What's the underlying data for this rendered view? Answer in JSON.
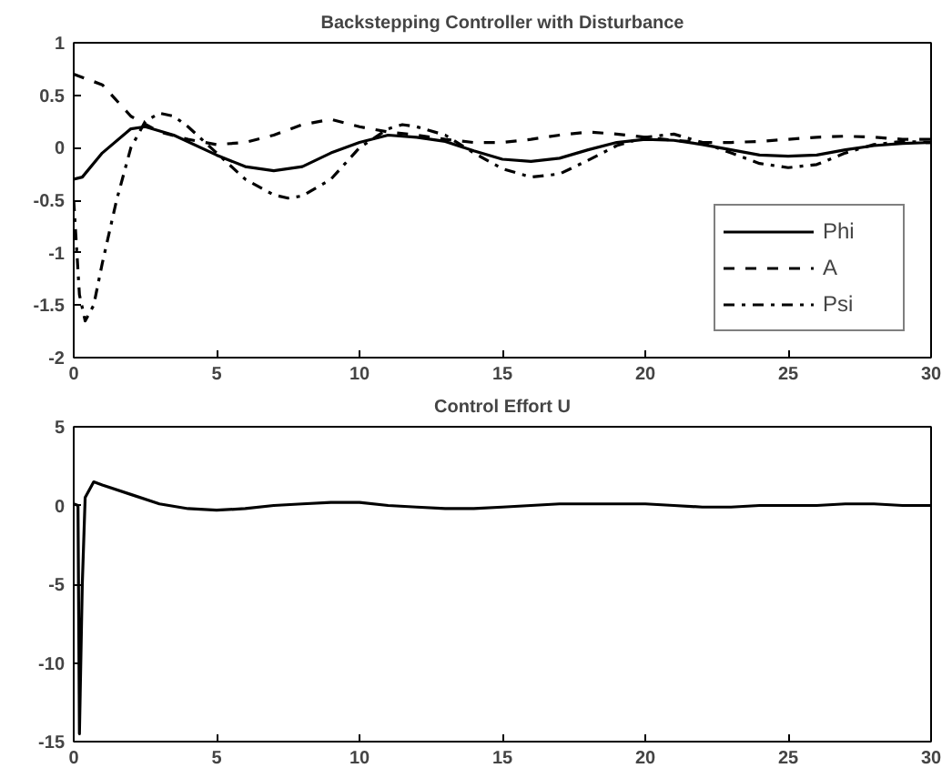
{
  "chart_data": [
    {
      "type": "line",
      "title": "Backstepping Controller with Disturbance",
      "xlim": [
        0,
        30
      ],
      "xticks": [
        0,
        5,
        10,
        15,
        20,
        25,
        30
      ],
      "ylim": [
        -2,
        1
      ],
      "yticks": [
        -2,
        -1.5,
        -1,
        -0.5,
        0,
        0.5,
        1
      ],
      "grid": false,
      "legend": "bottom right",
      "series": [
        {
          "name": "Phi",
          "color": "#000000",
          "line_style": "solid",
          "x": [
            0,
            0.3,
            1,
            2,
            2.5,
            3.5,
            5,
            6,
            7,
            8,
            9,
            10,
            11,
            12,
            13,
            14,
            15,
            16,
            17,
            18,
            19,
            20,
            21,
            22,
            23,
            24,
            25,
            26,
            27,
            28,
            29,
            30
          ],
          "values": [
            -0.3,
            -0.28,
            -0.05,
            0.18,
            0.2,
            0.12,
            -0.07,
            -0.18,
            -0.22,
            -0.18,
            -0.05,
            0.05,
            0.12,
            0.1,
            0.06,
            -0.03,
            -0.11,
            -0.13,
            -0.1,
            -0.02,
            0.05,
            0.08,
            0.07,
            0.03,
            -0.02,
            -0.07,
            -0.08,
            -0.07,
            -0.02,
            0.02,
            0.04,
            0.05
          ]
        },
        {
          "name": "A",
          "color": "#000000",
          "line_style": "dashed",
          "x": [
            0,
            1,
            2,
            3,
            4,
            5,
            6,
            7,
            8,
            9,
            10,
            11,
            12,
            13,
            14,
            15,
            16,
            17,
            18,
            19,
            20,
            21,
            22,
            23,
            24,
            25,
            26,
            27,
            28,
            29,
            30
          ],
          "values": [
            0.7,
            0.6,
            0.3,
            0.15,
            0.08,
            0.03,
            0.05,
            0.12,
            0.22,
            0.27,
            0.2,
            0.15,
            0.12,
            0.08,
            0.05,
            0.05,
            0.08,
            0.12,
            0.15,
            0.13,
            0.1,
            0.07,
            0.05,
            0.05,
            0.06,
            0.08,
            0.1,
            0.11,
            0.1,
            0.08,
            0.08
          ]
        },
        {
          "name": "Psi",
          "color": "#000000",
          "line_style": "dashdot",
          "x": [
            0,
            0.2,
            0.4,
            0.7,
            1,
            1.5,
            2,
            2.5,
            3,
            3.5,
            4,
            5,
            6,
            7,
            7.5,
            8,
            9,
            10,
            11,
            11.5,
            12,
            13,
            14,
            15,
            16,
            17,
            18,
            19,
            20,
            21,
            22,
            23,
            24,
            25,
            26,
            27,
            28,
            29,
            30
          ],
          "values": [
            -0.5,
            -1.4,
            -1.65,
            -1.5,
            -1.1,
            -0.5,
            0,
            0.25,
            0.33,
            0.3,
            0.2,
            -0.05,
            -0.3,
            -0.45,
            -0.48,
            -0.46,
            -0.3,
            0,
            0.18,
            0.22,
            0.2,
            0.12,
            -0.05,
            -0.2,
            -0.28,
            -0.25,
            -0.12,
            0.02,
            0.1,
            0.13,
            0.05,
            -0.05,
            -0.15,
            -0.19,
            -0.16,
            -0.05,
            0.03,
            0.06,
            0.05
          ]
        }
      ]
    },
    {
      "type": "line",
      "title": "Control Effort U",
      "xlim": [
        0,
        30
      ],
      "xticks": [
        0,
        5,
        10,
        15,
        20,
        25,
        30
      ],
      "ylim": [
        -15,
        5
      ],
      "yticks": [
        -15,
        -10,
        -5,
        0,
        5
      ],
      "grid": false,
      "legend": false,
      "series": [
        {
          "color": "#000000",
          "line_style": "solid",
          "x": [
            0,
            0.15,
            0.2,
            0.3,
            0.4,
            0.7,
            1,
            2,
            3,
            4,
            5,
            6,
            7,
            8,
            9,
            10,
            11,
            12,
            13,
            14,
            15,
            16,
            17,
            18,
            19,
            20,
            21,
            22,
            23,
            24,
            25,
            26,
            27,
            28,
            29,
            30
          ],
          "values": [
            0.1,
            0,
            -14.5,
            -5,
            0.5,
            1.5,
            1.3,
            0.7,
            0.1,
            -0.2,
            -0.3,
            -0.2,
            0,
            0.1,
            0.2,
            0.2,
            0,
            -0.1,
            -0.2,
            -0.2,
            -0.1,
            0,
            0.1,
            0.1,
            0.1,
            0.1,
            0,
            -0.1,
            -0.1,
            0,
            0,
            0,
            0.1,
            0.1,
            0,
            0
          ]
        }
      ]
    }
  ]
}
